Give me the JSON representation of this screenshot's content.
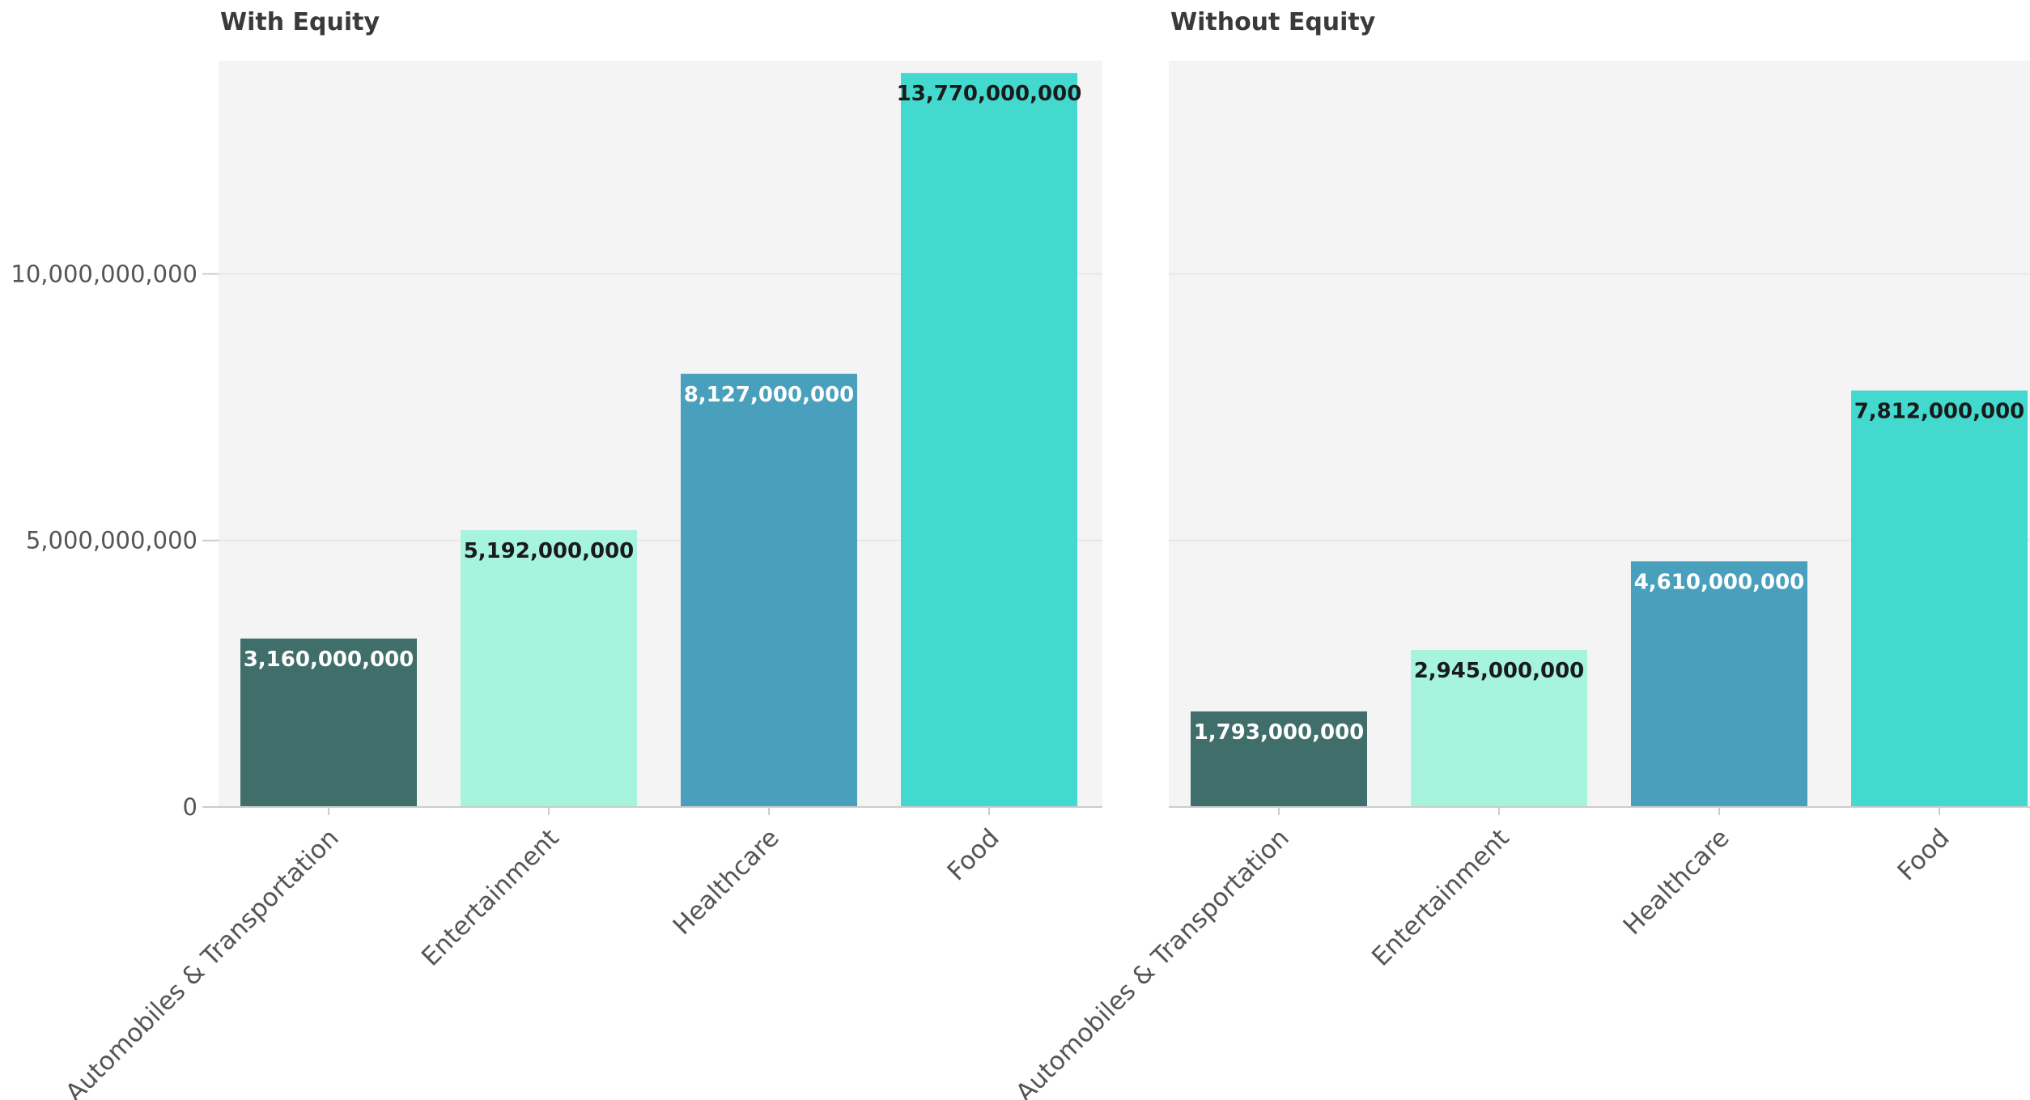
{
  "chart_data": [
    {
      "type": "bar",
      "title": "With Equity",
      "categories": [
        "Automobiles & Transportation",
        "Entertainment",
        "Healthcare",
        "Food"
      ],
      "values": [
        3160000000,
        5192000000,
        8127000000,
        13770000000
      ],
      "value_labels": [
        "3,160,000,000",
        "5,192,000,000",
        "8,127,000,000",
        "13,770,000,000"
      ],
      "ylim": [
        0,
        14000000000
      ],
      "y_ticks": [
        0,
        5000000000,
        10000000000
      ],
      "y_tick_labels": [
        "0",
        "5,000,000,000",
        "10,000,000,000"
      ],
      "xlabel": "",
      "ylabel": "",
      "grid": true
    },
    {
      "type": "bar",
      "title": "Without Equity",
      "categories": [
        "Automobiles & Transportation",
        "Entertainment",
        "Healthcare",
        "Food"
      ],
      "values": [
        1793000000,
        2945000000,
        4610000000,
        7812000000
      ],
      "value_labels": [
        "1,793,000,000",
        "2,945,000,000",
        "4,610,000,000",
        "7,812,000,000"
      ],
      "ylim": [
        0,
        14000000000
      ],
      "y_ticks": [
        0,
        5000000000,
        10000000000
      ],
      "xlabel": "",
      "ylabel": "",
      "grid": true
    }
  ],
  "colors": {
    "categories": [
      "#406e6a",
      "#a6f4de",
      "#48a0bc",
      "#44d9cf"
    ],
    "label_text": [
      "#ffffff",
      "#1a1a1a",
      "#ffffff",
      "#1a1a1a"
    ],
    "plot_background": "#f4f4f4",
    "gridline": "#e6e6e6",
    "axis_line": "#cccccc"
  }
}
